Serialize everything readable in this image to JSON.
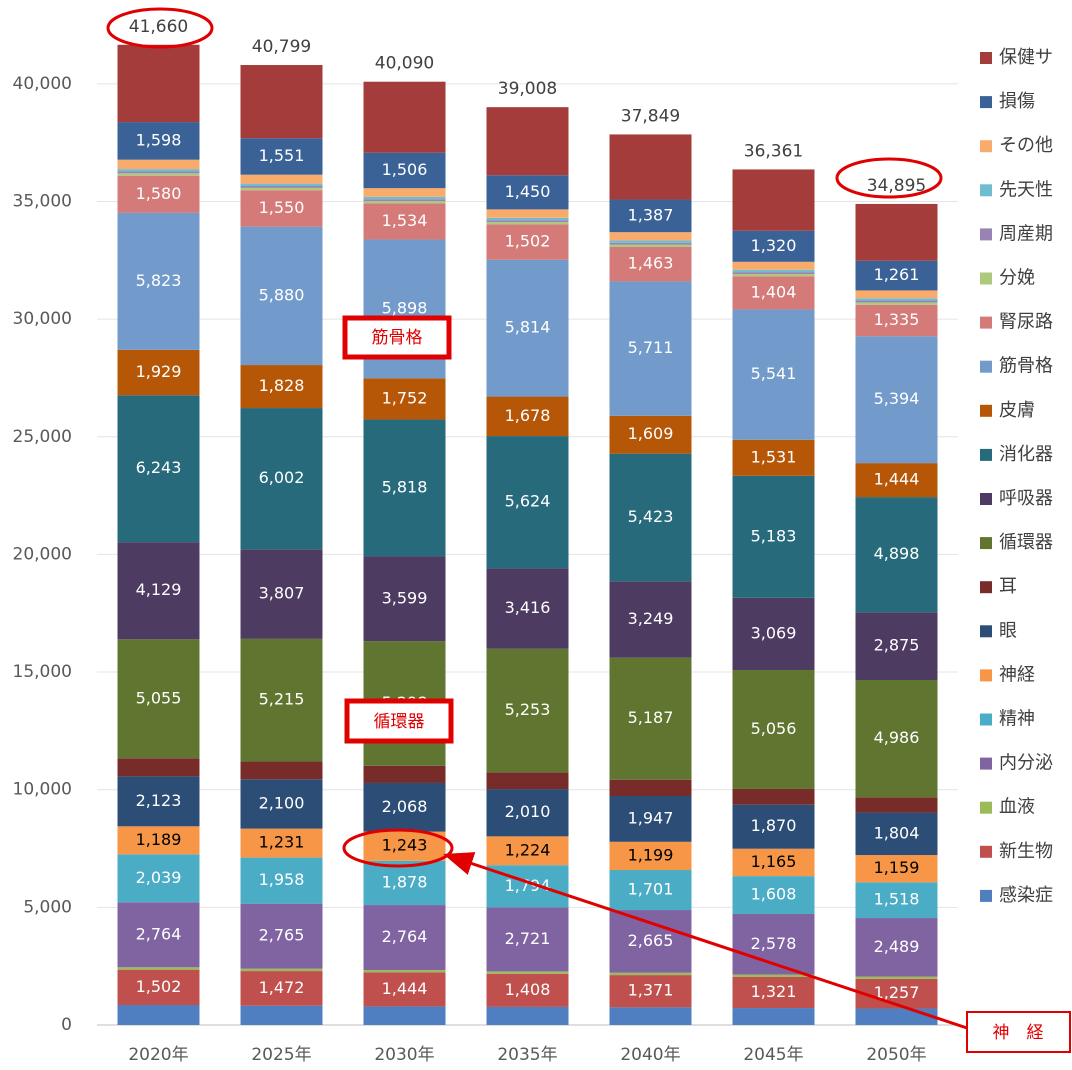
{
  "chart_data": {
    "type": "stacked_bar",
    "categories": [
      "2020年",
      "2025年",
      "2030年",
      "2035年",
      "2040年",
      "2045年",
      "2050年"
    ],
    "ylim": [
      0,
      42500
    ],
    "yticks": [
      0,
      {
        "value": 5000,
        "label": "5,000"
      },
      {
        "value": 10000,
        "label": "10,000"
      },
      {
        "value": 15000,
        "label": "15,000"
      },
      {
        "value": 20000,
        "label": "20,000"
      },
      {
        "value": 25000,
        "label": "25,000"
      },
      {
        "value": 30000,
        "label": "30,000"
      },
      {
        "value": 35000,
        "label": "35,000"
      },
      {
        "value": 40000,
        "label": "40,000"
      }
    ],
    "grid": true,
    "legend": "right",
    "totals": [
      41660,
      40799,
      40090,
      39008,
      37849,
      36361,
      34895
    ],
    "total_labels": [
      "41,660",
      "40,799",
      "40,090",
      "39,008",
      "37,849",
      "36,361",
      "34,895"
    ],
    "series": [
      {
        "name": "感染症",
        "color": "#4f7fc0",
        "values": [
          850,
          820,
          790,
          770,
          750,
          720,
          700
        ]
      },
      {
        "name": "新生物",
        "color": "#c0504d",
        "values": [
          1502,
          1472,
          1444,
          1408,
          1371,
          1321,
          1257
        ],
        "value_labels": [
          "1,502",
          "1,472",
          "1,444",
          "1,408",
          "1,371",
          "1,321",
          "1,257"
        ]
      },
      {
        "name": "血液",
        "color": "#9bbb59",
        "values": [
          100,
          100,
          100,
          100,
          100,
          100,
          100
        ]
      },
      {
        "name": "内分泌",
        "color": "#8064a2",
        "values": [
          2764,
          2765,
          2764,
          2721,
          2665,
          2578,
          2489
        ],
        "value_labels": [
          "2,764",
          "2,765",
          "2,764",
          "2,721",
          "2,665",
          "2,578",
          "2,489"
        ]
      },
      {
        "name": "精神",
        "color": "#4bacc6",
        "values": [
          2039,
          1958,
          1878,
          1794,
          1701,
          1608,
          1518
        ],
        "value_labels": [
          "2,039",
          "1,958",
          "1,878",
          "1,794",
          "1,701",
          "1,608",
          "1,518"
        ]
      },
      {
        "name": "神経",
        "color": "#f79646",
        "values": [
          1189,
          1231,
          1243,
          1224,
          1199,
          1165,
          1159
        ],
        "value_labels": [
          "1,189",
          "1,231",
          "1,243",
          "1,224",
          "1,199",
          "1,165",
          "1,159"
        ]
      },
      {
        "name": "眼",
        "color": "#2c4d75",
        "values": [
          2123,
          2100,
          2068,
          2010,
          1947,
          1870,
          1804
        ],
        "value_labels": [
          "2,123",
          "2,100",
          "2,068",
          "2,010",
          "1,947",
          "1,870",
          "1,804"
        ]
      },
      {
        "name": "耳",
        "color": "#772c2a",
        "values": [
          770,
          750,
          730,
          710,
          690,
          670,
          650
        ]
      },
      {
        "name": "循環器",
        "color": "#5f7530",
        "values": [
          5055,
          5215,
          5298,
          5253,
          5187,
          5056,
          4986
        ],
        "value_labels": [
          "5,055",
          "5,215",
          "5,298",
          "5,253",
          "5,187",
          "5,056",
          "4,986"
        ]
      },
      {
        "name": "呼吸器",
        "color": "#4d3b62",
        "values": [
          4129,
          3807,
          3599,
          3416,
          3249,
          3069,
          2875
        ],
        "value_labels": [
          "4,129",
          "3,807",
          "3,599",
          "3,416",
          "3,249",
          "3,069",
          "2,875"
        ]
      },
      {
        "name": "消化器",
        "color": "#276a7c",
        "values": [
          6243,
          6002,
          5818,
          5624,
          5423,
          5183,
          4898
        ],
        "value_labels": [
          "6,243",
          "6,002",
          "5,818",
          "5,624",
          "5,423",
          "5,183",
          "4,898"
        ]
      },
      {
        "name": "皮膚",
        "color": "#b65708",
        "values": [
          1929,
          1828,
          1752,
          1678,
          1609,
          1531,
          1444
        ],
        "value_labels": [
          "1,929",
          "1,828",
          "1,752",
          "1,678",
          "1,609",
          "1,531",
          "1,444"
        ]
      },
      {
        "name": "筋骨格",
        "color": "#729aca",
        "values": [
          5823,
          5880,
          5898,
          5814,
          5711,
          5541,
          5394
        ],
        "value_labels": [
          "5,823",
          "5,880",
          "5,898",
          "5,814",
          "5,711",
          "5,541",
          "5,394"
        ]
      },
      {
        "name": "腎尿路",
        "color": "#d47a78",
        "values": [
          1580,
          1550,
          1534,
          1502,
          1463,
          1404,
          1335
        ],
        "value_labels": [
          "1,580",
          "1,550",
          "1,534",
          "1,502",
          "1,463",
          "1,404",
          "1,335"
        ]
      },
      {
        "name": "分娩",
        "color": "#aec97d",
        "values": [
          100,
          100,
          100,
          100,
          100,
          100,
          100
        ]
      },
      {
        "name": "周産期",
        "color": "#9983b5",
        "values": [
          80,
          80,
          80,
          80,
          80,
          80,
          80
        ]
      },
      {
        "name": "先天性",
        "color": "#6fbdd1",
        "values": [
          100,
          100,
          100,
          100,
          100,
          100,
          100
        ]
      },
      {
        "name": "その他",
        "color": "#f9ab6b",
        "values": [
          400,
          380,
          370,
          360,
          350,
          340,
          330
        ]
      },
      {
        "name": "損傷",
        "color": "#3a6296",
        "values": [
          1598,
          1551,
          1506,
          1450,
          1387,
          1320,
          1261
        ],
        "value_labels": [
          "1,598",
          "1,551",
          "1,506",
          "1,450",
          "1,387",
          "1,320",
          "1,261"
        ]
      },
      {
        "name": "保健サ",
        "color": "#a33c3a",
        "values": [
          3286,
          3110,
          3018,
          2894,
          2767,
          2605,
          2415
        ]
      }
    ],
    "annotations": [
      "筋骨格",
      "循環器",
      "神　経"
    ]
  }
}
